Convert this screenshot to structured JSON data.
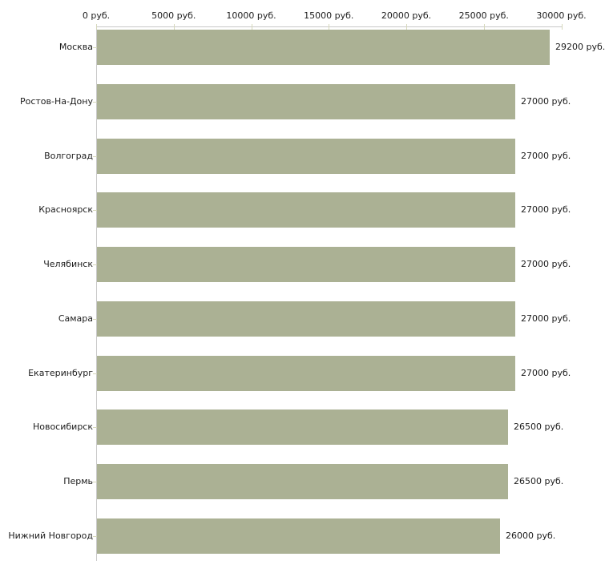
{
  "chart_data": {
    "type": "bar",
    "orientation": "horizontal",
    "title": "",
    "xlabel": "",
    "ylabel": "",
    "xlim": [
      0,
      30000
    ],
    "grid": false,
    "legend": false,
    "categories": [
      "Москва",
      "Ростов-На-Дону",
      "Волгоград",
      "Красноярск",
      "Челябинск",
      "Самара",
      "Екатеринбург",
      "Новосибирск",
      "Пермь",
      "Нижний Новгород"
    ],
    "values": [
      29200,
      27000,
      27000,
      27000,
      27000,
      27000,
      27000,
      26500,
      26500,
      26000
    ],
    "value_labels": [
      "29200 руб.",
      "27000 руб.",
      "27000 руб.",
      "27000 руб.",
      "27000 руб.",
      "27000 руб.",
      "27000 руб.",
      "26500 руб.",
      "26500 руб.",
      "26000 руб."
    ],
    "x_ticks": [
      0,
      5000,
      10000,
      15000,
      20000,
      25000,
      30000
    ],
    "x_tick_labels": [
      "0 руб.",
      "5000 руб.",
      "10000 руб.",
      "15000 руб.",
      "20000 руб.",
      "25000 руб.",
      "30000 руб."
    ],
    "colors": {
      "bar": "#abb194",
      "axis_line": "#c9c9c9",
      "tick_mark": "#d6d8bc",
      "text": "#1c1c1c",
      "background": "#ffffff"
    }
  }
}
